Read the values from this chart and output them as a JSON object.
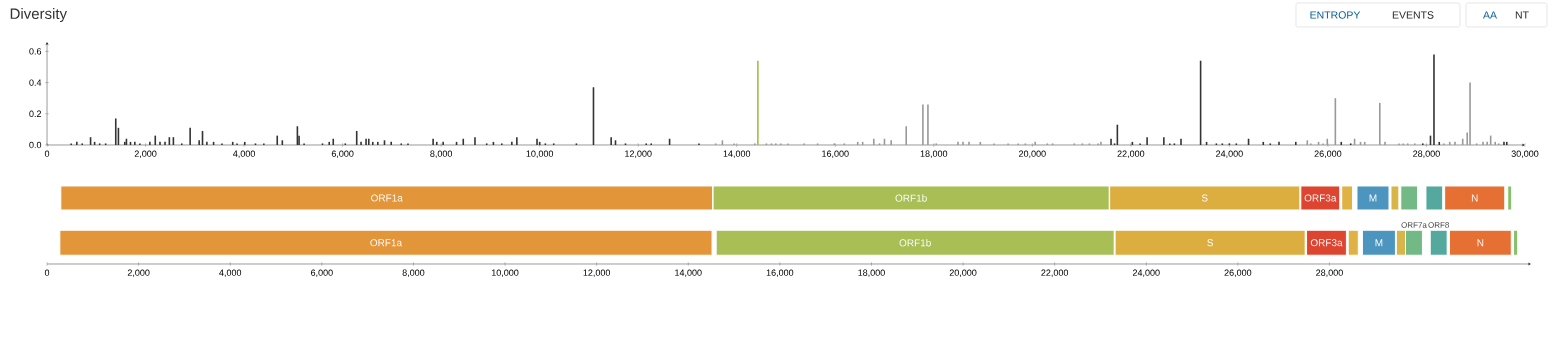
{
  "chart_data": [
    {
      "type": "bar",
      "title": "Diversity",
      "annotations": [
        "ENTROPY",
        "EVENTS",
        "AA",
        "NT"
      ],
      "xlim": [
        0,
        30000
      ],
      "ylim": [
        0,
        0.66
      ],
      "xticks": [
        0,
        {
          "value": 2000,
          "label": "2,000"
        },
        {
          "value": 4000,
          "label": "4,000"
        },
        {
          "value": 6000,
          "label": "6,000"
        },
        {
          "value": 8000,
          "label": "8,000"
        },
        {
          "value": 10000,
          "label": "10,000"
        },
        {
          "value": 12000,
          "label": "12,000"
        },
        {
          "value": 14000,
          "label": "14,000"
        },
        {
          "value": 16000,
          "label": "16,000"
        },
        {
          "value": 18000,
          "label": "18,000"
        },
        {
          "value": 20000,
          "label": "20,000"
        },
        {
          "value": 22000,
          "label": "22,000"
        },
        {
          "value": 24000,
          "label": "24,000"
        },
        {
          "value": 26000,
          "label": "26,000"
        },
        {
          "value": 28000,
          "label": "28,000"
        },
        {
          "value": 30000,
          "label": "30,000"
        }
      ],
      "yticks": [
        {
          "value": 0,
          "label": "0.0"
        },
        {
          "value": 0.2,
          "label": "0.2"
        },
        {
          "value": 0.4,
          "label": "0.4"
        },
        {
          "value": 0.6,
          "label": "0.6"
        }
      ],
      "series": [
        {
          "color": "#333333",
          "x": [
            490,
            605,
            714,
            884,
            966,
            1068,
            1190,
            1395,
            1449,
            1578,
            1612,
            1694,
            1782,
            1884,
            2088,
            2197,
            2293,
            2395,
            2483,
            2565,
            2735,
            2905,
            3088,
            3156,
            3245,
            3381,
            3551,
            3769,
            3857,
            4014,
            4231,
            4401,
            4673,
            4776,
            5082,
            5116,
            5218,
            5592,
            5728,
            5810,
            6054,
            6286,
            6374,
            6476,
            6531,
            6612,
            6714,
            6850,
            6986,
            7190,
            7327,
            7837,
            7911,
            8041,
            8313,
            8449,
            8687,
            8925,
            9061,
            9231,
            9435,
            9537,
            9946,
            10000,
            10115,
            10285,
            10746,
            11092,
            11451,
            11539,
            11742,
            12163,
            12264,
            12637,
            13234,
            21598,
            21669,
            21726,
            22031,
            22188,
            22330,
            22670,
            22791,
            22884,
            23018,
            23416,
            23537,
            23736,
            23857,
            23999,
            24141,
            24389,
            24688,
            24830,
            25007,
            25348,
            26271,
            26463,
            27926,
            28082,
            28153,
            28260,
            29574,
            29631
          ],
          "values": [
            0.01,
            0.02,
            0.01,
            0.05,
            0.02,
            0.01,
            0.01,
            0.17,
            0.11,
            0.02,
            0.04,
            0.02,
            0.02,
            0.01,
            0.02,
            0.06,
            0.02,
            0.02,
            0.05,
            0.05,
            0.01,
            0.11,
            0.03,
            0.09,
            0.02,
            0.02,
            0.01,
            0.02,
            0.01,
            0.02,
            0.01,
            0.01,
            0.06,
            0.03,
            0.12,
            0.06,
            0.01,
            0.01,
            0.02,
            0.04,
            0.01,
            0.09,
            0.02,
            0.04,
            0.04,
            0.02,
            0.02,
            0.03,
            0.02,
            0.01,
            0.01,
            0.04,
            0.02,
            0.02,
            0.02,
            0.04,
            0.05,
            0.01,
            0.02,
            0.01,
            0.02,
            0.05,
            0.04,
            0.02,
            0.01,
            0.01,
            0.01,
            0.37,
            0.05,
            0.03,
            0.01,
            0.01,
            0.01,
            0.04,
            0.01,
            0.04,
            0.01,
            0.13,
            0.02,
            0.01,
            0.05,
            0.05,
            0.01,
            0.01,
            0.04,
            0.54,
            0.02,
            0.01,
            0.01,
            0.01,
            0.01,
            0.04,
            0.02,
            0.01,
            0.02,
            0.02,
            0.02,
            0.01,
            0.01,
            0.06,
            0.58,
            0.02,
            0.02,
            0.02
          ]
        },
        {
          "color": "#999999",
          "x": [
            13573,
            13709,
            13946,
            14366,
            14603,
            14705,
            14793,
            14895,
            15044,
            15370,
            15641,
            15980,
            16183,
            16456,
            16556,
            16782,
            16897,
            16999,
            17135,
            17440,
            17779,
            17881,
            18050,
            18491,
            18593,
            18715,
            18945,
            19223,
            19508,
            19712,
            19858,
            20057,
            20305,
            20412,
            20852,
            21016,
            21158,
            21335,
            21392,
            25582,
            25653,
            25810,
            25902,
            25987,
            26151,
            26541,
            26662,
            26747,
            27053,
            27159,
            27443,
            27528,
            27621,
            27763,
            28352,
            28473,
            28580,
            28736,
            28828,
            28885,
            29020,
            29148,
            29233,
            29304,
            29396,
            29467
          ],
          "values": [
            0.01,
            0.03,
            0.01,
            0.01,
            0.01,
            0.01,
            0.01,
            0.01,
            0.01,
            0.01,
            0.01,
            0.01,
            0.01,
            0.02,
            0.02,
            0.04,
            0.01,
            0.04,
            0.03,
            0.12,
            0.26,
            0.26,
            0.01,
            0.02,
            0.02,
            0.02,
            0.02,
            0.01,
            0.01,
            0.01,
            0.01,
            0.02,
            0.01,
            0.01,
            0.01,
            0.01,
            0.01,
            0.01,
            0.02,
            0.03,
            0.01,
            0.02,
            0.01,
            0.04,
            0.3,
            0.04,
            0.02,
            0.02,
            0.27,
            0.02,
            0.01,
            0.01,
            0.01,
            0.01,
            0.01,
            0.02,
            0.02,
            0.04,
            0.08,
            0.4,
            0.01,
            0.02,
            0.02,
            0.06,
            0.02,
            0.01
          ]
        },
        {
          "color": "#a3bd45",
          "x": [
            14429
          ],
          "values": [
            0.54
          ]
        }
      ]
    },
    {
      "type": "bar",
      "orientation": "horizontal",
      "categories": [
        null
      ],
      "xlim": [
        0,
        30000
      ],
      "tick_labels": false,
      "series": [
        {
          "name": "ORF1a",
          "color": "#e39539",
          "base": [
            280
          ],
          "values": [
            13230
          ]
        },
        {
          "name": "ORF1b",
          "color": "#a9bf55",
          "base": [
            13520
          ],
          "values": [
            8040
          ]
        },
        {
          "name": "S",
          "color": "#dcae3f",
          "base": [
            21570
          ],
          "values": [
            3860
          ]
        },
        {
          "name": "ORF3a",
          "color": "#dd4530",
          "base": [
            25450
          ],
          "values": [
            790
          ]
        },
        {
          "color": "#dfb243",
          "base": [
            26280
          ],
          "values": [
            220
          ]
        },
        {
          "name": "M",
          "color": "#4b95bf",
          "base": [
            26590
          ],
          "values": [
            650
          ]
        },
        {
          "color": "#d8b548",
          "base": [
            27280
          ],
          "values": [
            160
          ]
        },
        {
          "color": "#72b985",
          "base": [
            27480
          ],
          "values": [
            340
          ]
        },
        {
          "color": "#55a89e",
          "base": [
            27990
          ],
          "values": [
            340
          ]
        },
        {
          "name": "N",
          "color": "#e66f33",
          "base": [
            28370
          ],
          "values": [
            1220
          ]
        },
        {
          "color": "#86c06a",
          "base": [
            29650
          ],
          "values": [
            80
          ]
        }
      ]
    },
    {
      "type": "bar",
      "orientation": "horizontal",
      "categories": [
        null
      ],
      "xlim": [
        0,
        32400
      ],
      "tick_labels": "x",
      "xticks": [
        0,
        {
          "value": 2000,
          "label": "2,000"
        },
        {
          "value": 4000,
          "label": "4,000"
        },
        {
          "value": 6000,
          "label": "6,000"
        },
        {
          "value": 8000,
          "label": "8,000"
        },
        {
          "value": 10000,
          "label": "10,000"
        },
        {
          "value": 12000,
          "label": "12,000"
        },
        {
          "value": 14000,
          "label": "14,000"
        },
        {
          "value": 16000,
          "label": "16,000"
        },
        {
          "value": 18000,
          "label": "18,000"
        },
        {
          "value": 20000,
          "label": "20,000"
        },
        {
          "value": 22000,
          "label": "22,000"
        },
        {
          "value": 24000,
          "label": "24,000"
        },
        {
          "value": 26000,
          "label": "26,000"
        },
        {
          "value": 28000,
          "label": "28,000"
        }
      ],
      "series": [
        {
          "name": "ORF1a",
          "color": "#e39539",
          "base": [
            280
          ],
          "values": [
            14240
          ]
        },
        {
          "name": "ORF1b",
          "color": "#a9bf55",
          "base": [
            14610
          ],
          "values": [
            8690
          ]
        },
        {
          "name": "S",
          "color": "#dcae3f",
          "base": [
            23320
          ],
          "values": [
            4150
          ]
        },
        {
          "name": "ORF3a",
          "color": "#dd4530",
          "base": [
            27500
          ],
          "values": [
            870
          ]
        },
        {
          "color": "#dfb243",
          "base": [
            28410
          ],
          "values": [
            220
          ]
        },
        {
          "name": "M",
          "color": "#4b95bf",
          "base": [
            28720
          ],
          "values": [
            720
          ]
        },
        {
          "color": "#d8b548",
          "base": [
            29460
          ],
          "values": [
            200
          ]
        },
        {
          "name": "ORF7a",
          "color": "#72b985",
          "base": [
            29660
          ],
          "values": [
            370
          ]
        },
        {
          "name": "ORF8",
          "color": "#55a89e",
          "base": [
            30200
          ],
          "values": [
            370
          ]
        },
        {
          "name": "N",
          "color": "#e66f33",
          "base": [
            30620
          ],
          "values": [
            1350
          ]
        },
        {
          "color": "#86c06a",
          "base": [
            32020
          ],
          "values": [
            90
          ]
        }
      ]
    }
  ]
}
